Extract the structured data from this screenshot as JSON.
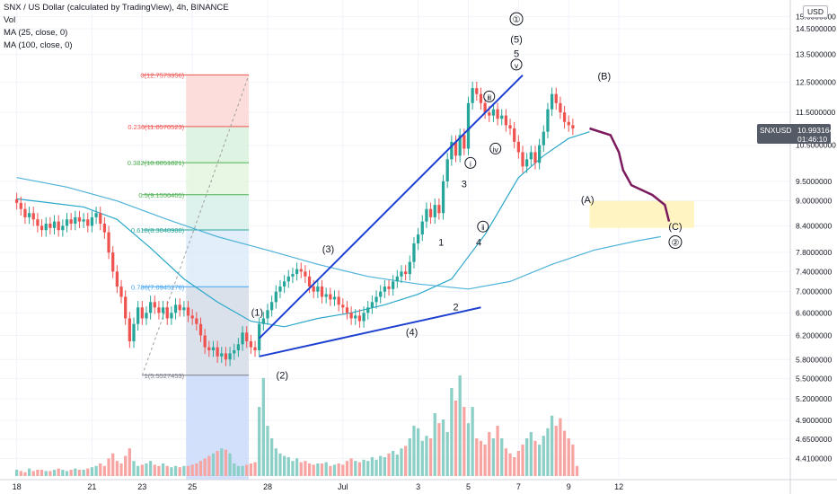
{
  "header": {
    "title": "SNX / US Dollar (calculated by TradingView), 4h, BINANCE",
    "vol_label": "Vol",
    "ma25_label": "MA (25, close, 0)",
    "ma100_label": "MA (100, close, 0)",
    "currency": "USD"
  },
  "price_tag": {
    "symbol": "SNXUSD",
    "price": "10.9931645",
    "countdown": "01:46:10"
  },
  "colors": {
    "up": "#26a69a",
    "down": "#ef5350",
    "vol_up": "#8ccfc6",
    "vol_down": "#f6a5a3",
    "ma25": "#2aa8c9",
    "ma100": "#4fb3d9",
    "trend": "#1e40d0",
    "projection": "#7b1a5e",
    "target_zone": "#fff4c2"
  },
  "chart_data": {
    "type": "candlestick",
    "title": "SNX / US Dollar (calculated by TradingView), 4h, BINANCE",
    "ylim": [
      4.2,
      15.7
    ],
    "y_scale": "log",
    "x_index_range": [
      -4,
      185
    ],
    "x_ticks": [
      {
        "i": 0,
        "label": "18"
      },
      {
        "i": 18,
        "label": "21"
      },
      {
        "i": 30,
        "label": "23"
      },
      {
        "i": 42,
        "label": "25"
      },
      {
        "i": 60,
        "label": "28"
      },
      {
        "i": 78,
        "label": "Jul"
      },
      {
        "i": 96,
        "label": "3"
      },
      {
        "i": 108,
        "label": "5"
      },
      {
        "i": 120,
        "label": "7"
      },
      {
        "i": 132,
        "label": "9"
      },
      {
        "i": 144,
        "label": "12"
      }
    ],
    "y_ticks": [
      "15.0000000",
      "14.5000000",
      "13.5000000",
      "12.5000000",
      "11.5000000",
      "10.5000000",
      "9.5000000",
      "9.0000000",
      "8.4000000",
      "7.8000000",
      "7.4000000",
      "7.0000000",
      "6.6000000",
      "6.2000000",
      "5.8000000",
      "5.5000000",
      "5.2000000",
      "4.9000000",
      "4.6500000",
      "4.4100000"
    ],
    "closes": [
      8.95,
      8.8,
      8.6,
      8.7,
      8.55,
      8.4,
      8.3,
      8.45,
      8.35,
      8.5,
      8.3,
      8.4,
      8.55,
      8.45,
      8.6,
      8.5,
      8.55,
      8.4,
      8.6,
      8.7,
      8.45,
      8.25,
      7.8,
      7.4,
      7.1,
      6.9,
      6.5,
      6.1,
      6.4,
      6.7,
      6.5,
      6.6,
      6.8,
      6.7,
      6.6,
      6.7,
      6.5,
      6.6,
      6.75,
      6.65,
      6.7,
      6.55,
      6.5,
      6.4,
      6.2,
      6.0,
      5.95,
      6.0,
      5.85,
      5.9,
      5.8,
      5.9,
      5.95,
      6.05,
      6.25,
      6.1,
      6.0,
      5.95,
      6.4,
      6.5,
      6.65,
      6.8,
      7.0,
      7.1,
      7.2,
      7.3,
      7.35,
      7.45,
      7.4,
      7.3,
      7.1,
      7.0,
      7.1,
      6.9,
      6.95,
      6.85,
      6.9,
      6.75,
      6.7,
      6.6,
      6.5,
      6.55,
      6.45,
      6.6,
      6.7,
      6.8,
      6.9,
      7.0,
      7.1,
      7.05,
      7.2,
      7.3,
      7.4,
      7.35,
      7.6,
      8.0,
      8.2,
      8.5,
      8.8,
      8.6,
      8.9,
      8.7,
      9.5,
      10.1,
      10.6,
      10.2,
      10.8,
      10.4,
      11.8,
      12.3,
      12.1,
      11.8,
      11.5,
      11.4,
      11.6,
      11.3,
      11.4,
      11.1,
      11.0,
      10.6,
      10.3,
      9.9,
      10.1,
      10.3,
      10.0,
      10.5,
      10.9,
      11.6,
      12.1,
      11.8,
      11.5,
      11.2,
      11.1,
      11.0
    ],
    "ma25": [
      [
        0,
        9.05
      ],
      [
        8,
        8.95
      ],
      [
        16,
        8.85
      ],
      [
        24,
        8.55
      ],
      [
        32,
        7.9
      ],
      [
        40,
        7.25
      ],
      [
        48,
        6.8
      ],
      [
        56,
        6.45
      ],
      [
        64,
        6.35
      ],
      [
        72,
        6.5
      ],
      [
        80,
        6.6
      ],
      [
        88,
        6.75
      ],
      [
        96,
        6.95
      ],
      [
        104,
        7.25
      ],
      [
        112,
        8.2
      ],
      [
        120,
        9.6
      ],
      [
        126,
        10.2
      ],
      [
        132,
        10.7
      ],
      [
        137,
        10.9
      ]
    ],
    "ma100": [
      [
        0,
        9.6
      ],
      [
        12,
        9.35
      ],
      [
        24,
        9.0
      ],
      [
        36,
        8.55
      ],
      [
        48,
        8.15
      ],
      [
        60,
        7.85
      ],
      [
        72,
        7.55
      ],
      [
        84,
        7.3
      ],
      [
        96,
        7.15
      ],
      [
        108,
        7.05
      ],
      [
        118,
        7.2
      ],
      [
        128,
        7.55
      ],
      [
        138,
        7.85
      ],
      [
        148,
        8.05
      ],
      [
        154,
        8.15
      ]
    ],
    "volume": [
      0.05,
      0.04,
      0.03,
      0.06,
      0.04,
      0.05,
      0.05,
      0.04,
      0.04,
      0.05,
      0.06,
      0.05,
      0.04,
      0.05,
      0.06,
      0.05,
      0.05,
      0.06,
      0.07,
      0.08,
      0.1,
      0.08,
      0.14,
      0.18,
      0.12,
      0.1,
      0.16,
      0.22,
      0.12,
      0.08,
      0.09,
      0.1,
      0.12,
      0.09,
      0.08,
      0.1,
      0.08,
      0.07,
      0.08,
      0.07,
      0.08,
      0.08,
      0.09,
      0.1,
      0.12,
      0.14,
      0.16,
      0.18,
      0.2,
      0.22,
      0.21,
      0.18,
      0.1,
      0.08,
      0.08,
      0.09,
      0.1,
      0.11,
      0.55,
      0.78,
      0.4,
      0.3,
      0.22,
      0.18,
      0.16,
      0.15,
      0.12,
      0.14,
      0.11,
      0.12,
      0.1,
      0.09,
      0.1,
      0.1,
      0.11,
      0.08,
      0.09,
      0.1,
      0.09,
      0.12,
      0.14,
      0.12,
      0.11,
      0.13,
      0.12,
      0.15,
      0.13,
      0.16,
      0.15,
      0.18,
      0.2,
      0.17,
      0.22,
      0.24,
      0.3,
      0.4,
      0.38,
      0.28,
      0.32,
      0.3,
      0.5,
      0.42,
      0.45,
      0.35,
      0.7,
      0.6,
      0.8,
      0.55,
      0.42,
      0.55,
      0.3,
      0.28,
      0.25,
      0.35,
      0.3,
      0.4,
      0.3,
      0.22,
      0.18,
      0.15,
      0.2,
      0.25,
      0.3,
      0.35,
      0.28,
      0.25,
      0.32,
      0.38,
      0.48,
      0.4,
      0.46,
      0.36,
      0.3,
      0.25,
      0.08
    ],
    "fib_levels": [
      {
        "label": "0(12.7573356)",
        "price": 12.7573356,
        "color": "#ef5350"
      },
      {
        "label": "0.236(11.0570523)",
        "price": 11.0570523,
        "color": "#ef5350"
      },
      {
        "label": "0.382(10.0051821)",
        "price": 10.0051821,
        "color": "#4caf50"
      },
      {
        "label": "0.5(9.1550405)",
        "price": 9.1550405,
        "color": "#4caf50"
      },
      {
        "label": "0.618(8.3048988)",
        "price": 8.3048988,
        "color": "#26a69a"
      },
      {
        "label": "0.786(7.0945276)",
        "price": 7.0945276,
        "color": "#42a5f5"
      },
      {
        "label": "1(5.5527453)",
        "price": 5.5527453,
        "color": "#787b86"
      }
    ],
    "wave_labels": [
      "(1)",
      "(2)",
      "(3)",
      "(4)",
      "(5)",
      "5",
      "1",
      "2",
      "3",
      "4",
      "(A)",
      "(B)",
      "(C)",
      "①",
      "②",
      "ⅰ",
      "ⅱ",
      "ⅲ",
      "ⅳ",
      "ⅴ"
    ]
  }
}
